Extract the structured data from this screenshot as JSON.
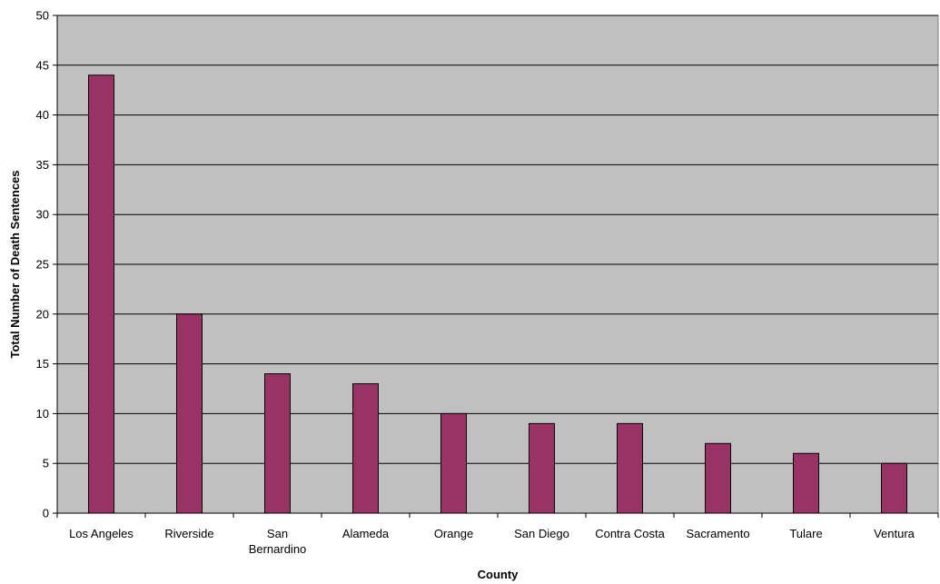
{
  "chart_data": {
    "type": "bar",
    "categories": [
      "Los Angeles",
      "Riverside",
      "San Bernardino",
      "Alameda",
      "Orange",
      "San Diego",
      "Contra Costa",
      "Sacramento",
      "Tulare",
      "Ventura"
    ],
    "category_lines": [
      [
        "Los Angeles"
      ],
      [
        "Riverside"
      ],
      [
        "San",
        "Bernardino"
      ],
      [
        "Alameda"
      ],
      [
        "Orange"
      ],
      [
        "San Diego"
      ],
      [
        "Contra Costa"
      ],
      [
        "Sacramento"
      ],
      [
        "Tulare"
      ],
      [
        "Ventura"
      ]
    ],
    "values": [
      44,
      20,
      14,
      13,
      10,
      9,
      9,
      7,
      6,
      5
    ],
    "xlabel": "County",
    "ylabel": "Total Number of Death Sentences",
    "ylim": [
      0,
      50
    ],
    "yticks": [
      0,
      5,
      10,
      15,
      20,
      25,
      30,
      35,
      40,
      45,
      50
    ],
    "grid": "horizontal",
    "legend": "none",
    "colors": {
      "bar": "#993366",
      "plot_background": "#c0c0c0",
      "gridline": "#000000"
    }
  }
}
